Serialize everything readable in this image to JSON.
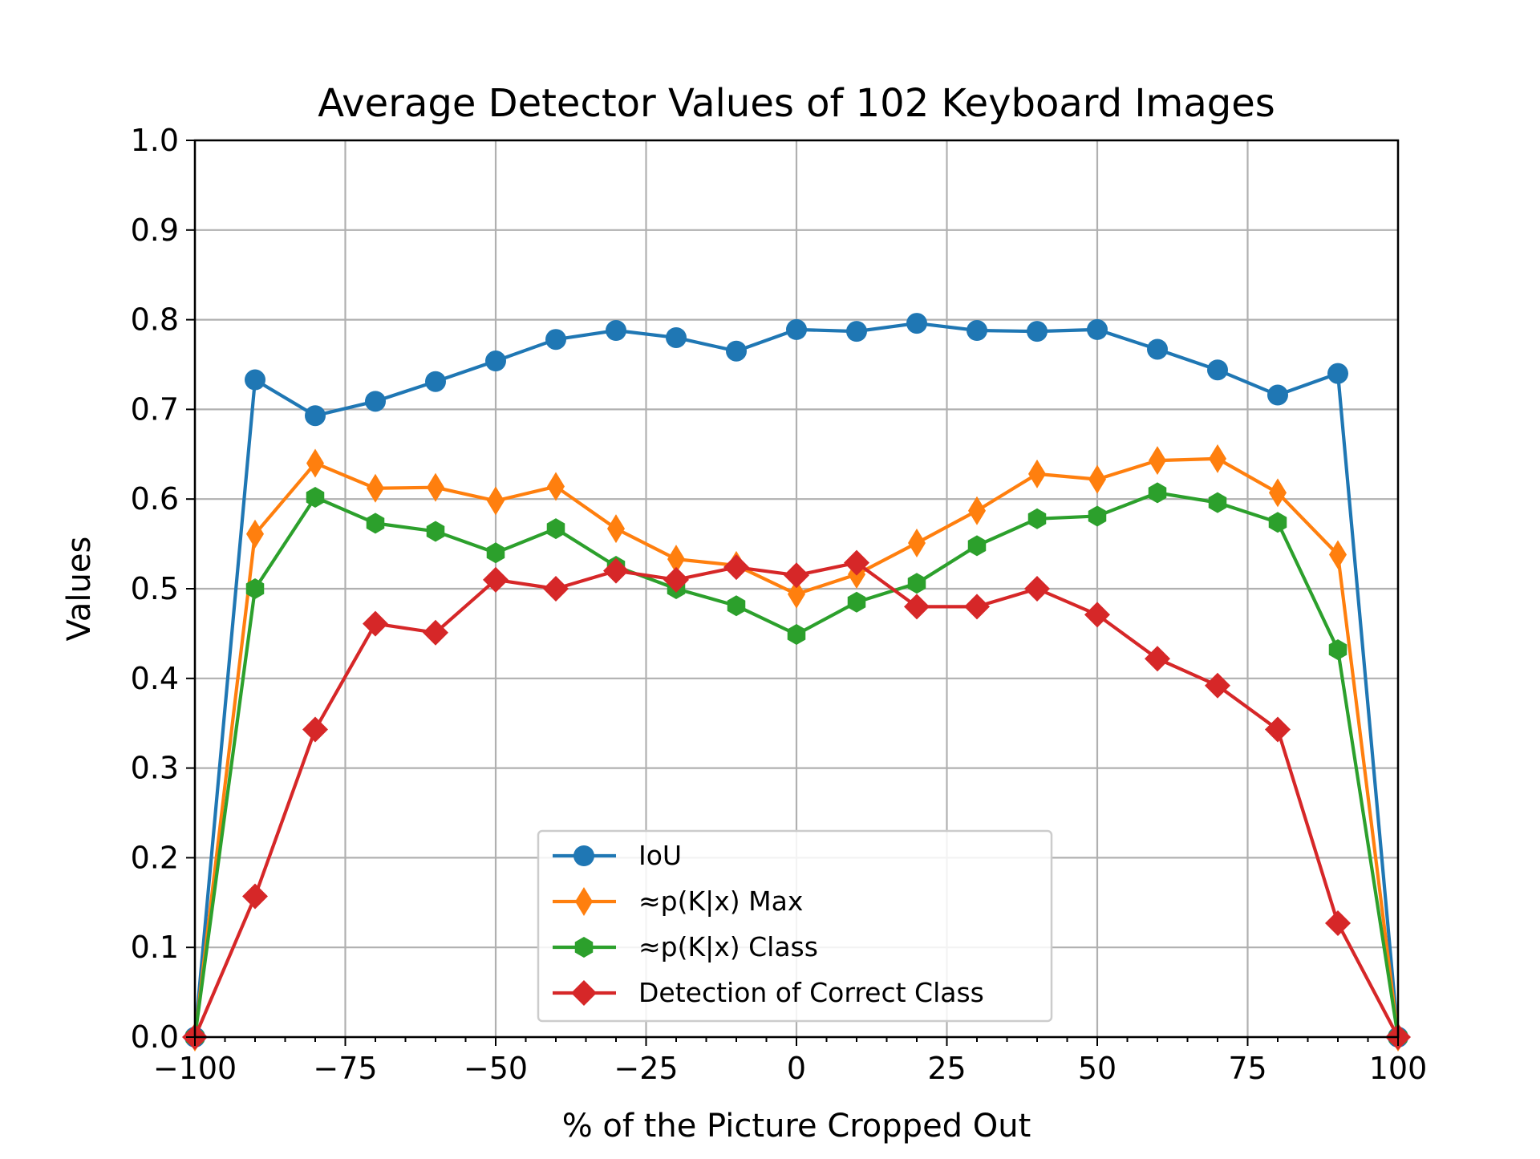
{
  "chart_data": {
    "type": "line",
    "title": "Average Detector Values of 102 Keyboard Images",
    "xlabel": "% of the Picture Cropped Out",
    "ylabel": "Values",
    "xlim": [
      -100,
      100
    ],
    "ylim": [
      0.0,
      1.0
    ],
    "x": [
      -100,
      -90,
      -80,
      -70,
      -60,
      -50,
      -40,
      -30,
      -20,
      -10,
      0,
      10,
      20,
      30,
      40,
      50,
      60,
      70,
      80,
      90,
      100
    ],
    "x_ticks": [
      -100,
      -75,
      -50,
      -25,
      0,
      25,
      50,
      75,
      100
    ],
    "x_tick_labels": [
      "−100",
      "−75",
      "−50",
      "−25",
      "0",
      "25",
      "50",
      "75",
      "100"
    ],
    "y_ticks": [
      0.0,
      0.1,
      0.2,
      0.3,
      0.4,
      0.5,
      0.6,
      0.7,
      0.8,
      0.9,
      1.0
    ],
    "y_tick_labels": [
      "0.0",
      "0.1",
      "0.2",
      "0.3",
      "0.4",
      "0.5",
      "0.6",
      "0.7",
      "0.8",
      "0.9",
      "1.0"
    ],
    "grid": true,
    "legend_position": "lower-center",
    "series": [
      {
        "name": "IoU",
        "color": "#1f77b4",
        "marker": "circle",
        "values": [
          0.0,
          0.733,
          0.693,
          0.709,
          0.731,
          0.754,
          0.778,
          0.788,
          0.78,
          0.765,
          0.789,
          0.787,
          0.796,
          0.788,
          0.787,
          0.789,
          0.767,
          0.744,
          0.716,
          0.74,
          0.0
        ]
      },
      {
        "name": "≈p(K|x) Max",
        "color": "#ff7f0e",
        "marker": "thin-diamond",
        "values": [
          0.0,
          0.561,
          0.64,
          0.612,
          0.613,
          0.598,
          0.614,
          0.567,
          0.533,
          0.526,
          0.494,
          0.516,
          0.551,
          0.587,
          0.628,
          0.622,
          0.643,
          0.645,
          0.607,
          0.538,
          0.0
        ]
      },
      {
        "name": "≈p(K|x) Class",
        "color": "#2ca02c",
        "marker": "hexagon",
        "values": [
          0.0,
          0.5,
          0.602,
          0.573,
          0.564,
          0.54,
          0.567,
          0.525,
          0.5,
          0.481,
          0.449,
          0.485,
          0.506,
          0.548,
          0.578,
          0.581,
          0.607,
          0.596,
          0.574,
          0.432,
          0.0
        ]
      },
      {
        "name": "Detection of Correct Class",
        "color": "#d62728",
        "marker": "diamond",
        "values": [
          0.0,
          0.157,
          0.343,
          0.461,
          0.451,
          0.51,
          0.5,
          0.52,
          0.51,
          0.524,
          0.515,
          0.529,
          0.48,
          0.48,
          0.5,
          0.471,
          0.422,
          0.392,
          0.343,
          0.127,
          0.0
        ]
      }
    ]
  }
}
